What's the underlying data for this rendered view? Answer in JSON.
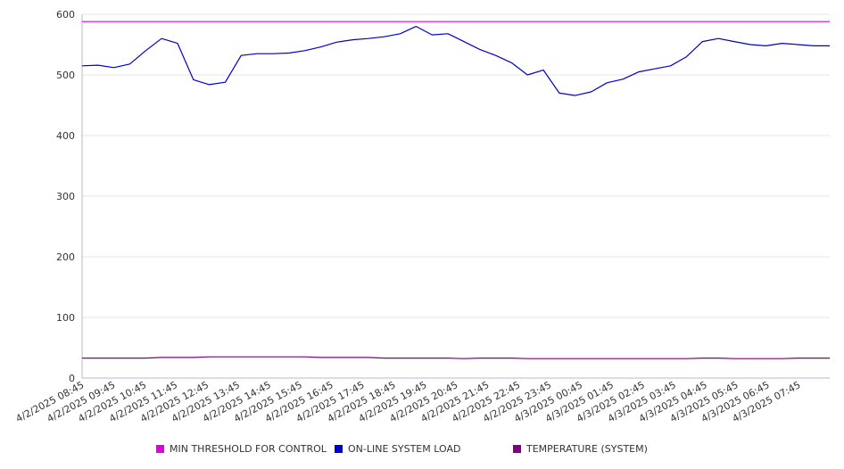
{
  "chart_data": {
    "type": "line",
    "ylim": [
      0,
      600
    ],
    "y_ticks": [
      0,
      100,
      200,
      300,
      400,
      500,
      600
    ],
    "grid": true,
    "legend_position": "bottom",
    "x_tick_labels": [
      "4/2/2025 08:45",
      "4/2/2025 09:45",
      "4/2/2025 10:45",
      "4/2/2025 11:45",
      "4/2/2025 12:45",
      "4/2/2025 13:45",
      "4/2/2025 14:45",
      "4/2/2025 15:45",
      "4/2/2025 16:45",
      "4/2/2025 17:45",
      "4/2/2025 18:45",
      "4/2/2025 19:45",
      "4/2/2025 20:45",
      "4/2/2025 21:45",
      "4/2/2025 22:45",
      "4/2/2025 23:45",
      "4/3/2025 00:45",
      "4/3/2025 01:45",
      "4/3/2025 02:45",
      "4/3/2025 03:45",
      "4/3/2025 04:45",
      "4/3/2025 05:45",
      "4/3/2025 06:45",
      "4/3/2025 07:45"
    ],
    "x": [
      "4/2/2025 08:45",
      "4/2/2025 09:15",
      "4/2/2025 09:45",
      "4/2/2025 10:15",
      "4/2/2025 10:45",
      "4/2/2025 11:15",
      "4/2/2025 11:45",
      "4/2/2025 12:15",
      "4/2/2025 12:45",
      "4/2/2025 13:15",
      "4/2/2025 13:45",
      "4/2/2025 14:15",
      "4/2/2025 14:45",
      "4/2/2025 15:15",
      "4/2/2025 15:45",
      "4/2/2025 16:15",
      "4/2/2025 16:45",
      "4/2/2025 17:15",
      "4/2/2025 17:45",
      "4/2/2025 18:15",
      "4/2/2025 18:45",
      "4/2/2025 19:15",
      "4/2/2025 19:45",
      "4/2/2025 20:15",
      "4/2/2025 20:45",
      "4/2/2025 21:15",
      "4/2/2025 21:45",
      "4/2/2025 22:15",
      "4/2/2025 22:45",
      "4/2/2025 23:15",
      "4/2/2025 23:45",
      "4/3/2025 00:15",
      "4/3/2025 00:45",
      "4/3/2025 01:15",
      "4/3/2025 01:45",
      "4/3/2025 02:15",
      "4/3/2025 02:45",
      "4/3/2025 03:15",
      "4/3/2025 03:45",
      "4/3/2025 04:15",
      "4/3/2025 04:45",
      "4/3/2025 05:15",
      "4/3/2025 05:45",
      "4/3/2025 06:15",
      "4/3/2025 06:45",
      "4/3/2025 07:15",
      "4/3/2025 07:45",
      "4/3/2025 08:15"
    ],
    "series": [
      {
        "name": "MIN THRESHOLD FOR CONTROL",
        "color": "#e000e0",
        "values": [
          588,
          588,
          588,
          588,
          588,
          588,
          588,
          588,
          588,
          588,
          588,
          588,
          588,
          588,
          588,
          588,
          588,
          588,
          588,
          588,
          588,
          588,
          588,
          588,
          588,
          588,
          588,
          588,
          588,
          588,
          588,
          588,
          588,
          588,
          588,
          588,
          588,
          588,
          588,
          588,
          588,
          588,
          588,
          588,
          588,
          588,
          588,
          588
        ]
      },
      {
        "name": "ON-LINE SYSTEM LOAD",
        "color": "#0000cc",
        "values": [
          515,
          516,
          512,
          518,
          540,
          560,
          552,
          492,
          484,
          488,
          532,
          535,
          535,
          536,
          540,
          546,
          554,
          558,
          560,
          563,
          568,
          580,
          566,
          568,
          555,
          542,
          532,
          520,
          500,
          508,
          470,
          466,
          472,
          487,
          493,
          505,
          510,
          515,
          530,
          555,
          560,
          555,
          550,
          548,
          552,
          550,
          548,
          548
        ]
      },
      {
        "name": "TEMPERATURE (SYSTEM)",
        "color": "#800080",
        "values": [
          33,
          33,
          33,
          33,
          33,
          34,
          34,
          34,
          35,
          35,
          35,
          35,
          35,
          35,
          35,
          34,
          34,
          34,
          34,
          33,
          33,
          33,
          33,
          33,
          32,
          33,
          33,
          33,
          32,
          32,
          32,
          32,
          32,
          32,
          32,
          32,
          32,
          32,
          32,
          33,
          33,
          32,
          32,
          32,
          32,
          33,
          33,
          33
        ]
      }
    ]
  }
}
